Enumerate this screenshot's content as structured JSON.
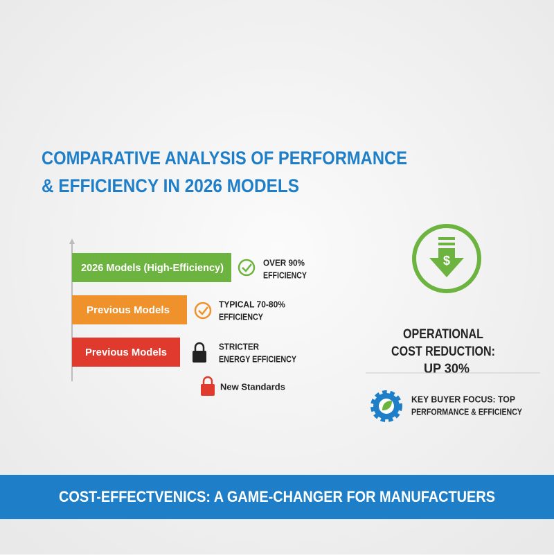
{
  "title_lines": [
    "COMPARATIVE ANALYSIS OF PERFORMANCE",
    "& EFFICIENCY IN 2026 MODELS"
  ],
  "rows": [
    {
      "label": "2026 Models (High-Efficiency)",
      "note_lines": [
        "OVER 90%",
        "EFFICIENCY"
      ]
    },
    {
      "label": "Previous Models",
      "note_lines": [
        "TYPICAL 70-80%",
        "EFFICIENCY"
      ]
    },
    {
      "label": "Previous Models",
      "note_lines": [
        "STRICTER",
        "ENERGY EFFICIENCY"
      ]
    }
  ],
  "standards_note": "New Standards",
  "cost_lines": [
    "OPERATIONAL",
    "COST REDUCTION:",
    "UP 30%"
  ],
  "focus_lines": [
    "KEY BUYER FOCUS: TOP",
    "PERFORMANCE & EFFICIENCY"
  ],
  "footer": "COST-EFFECTVENICS: A GAME-CHANGER FOR MANUFACTUERS"
}
